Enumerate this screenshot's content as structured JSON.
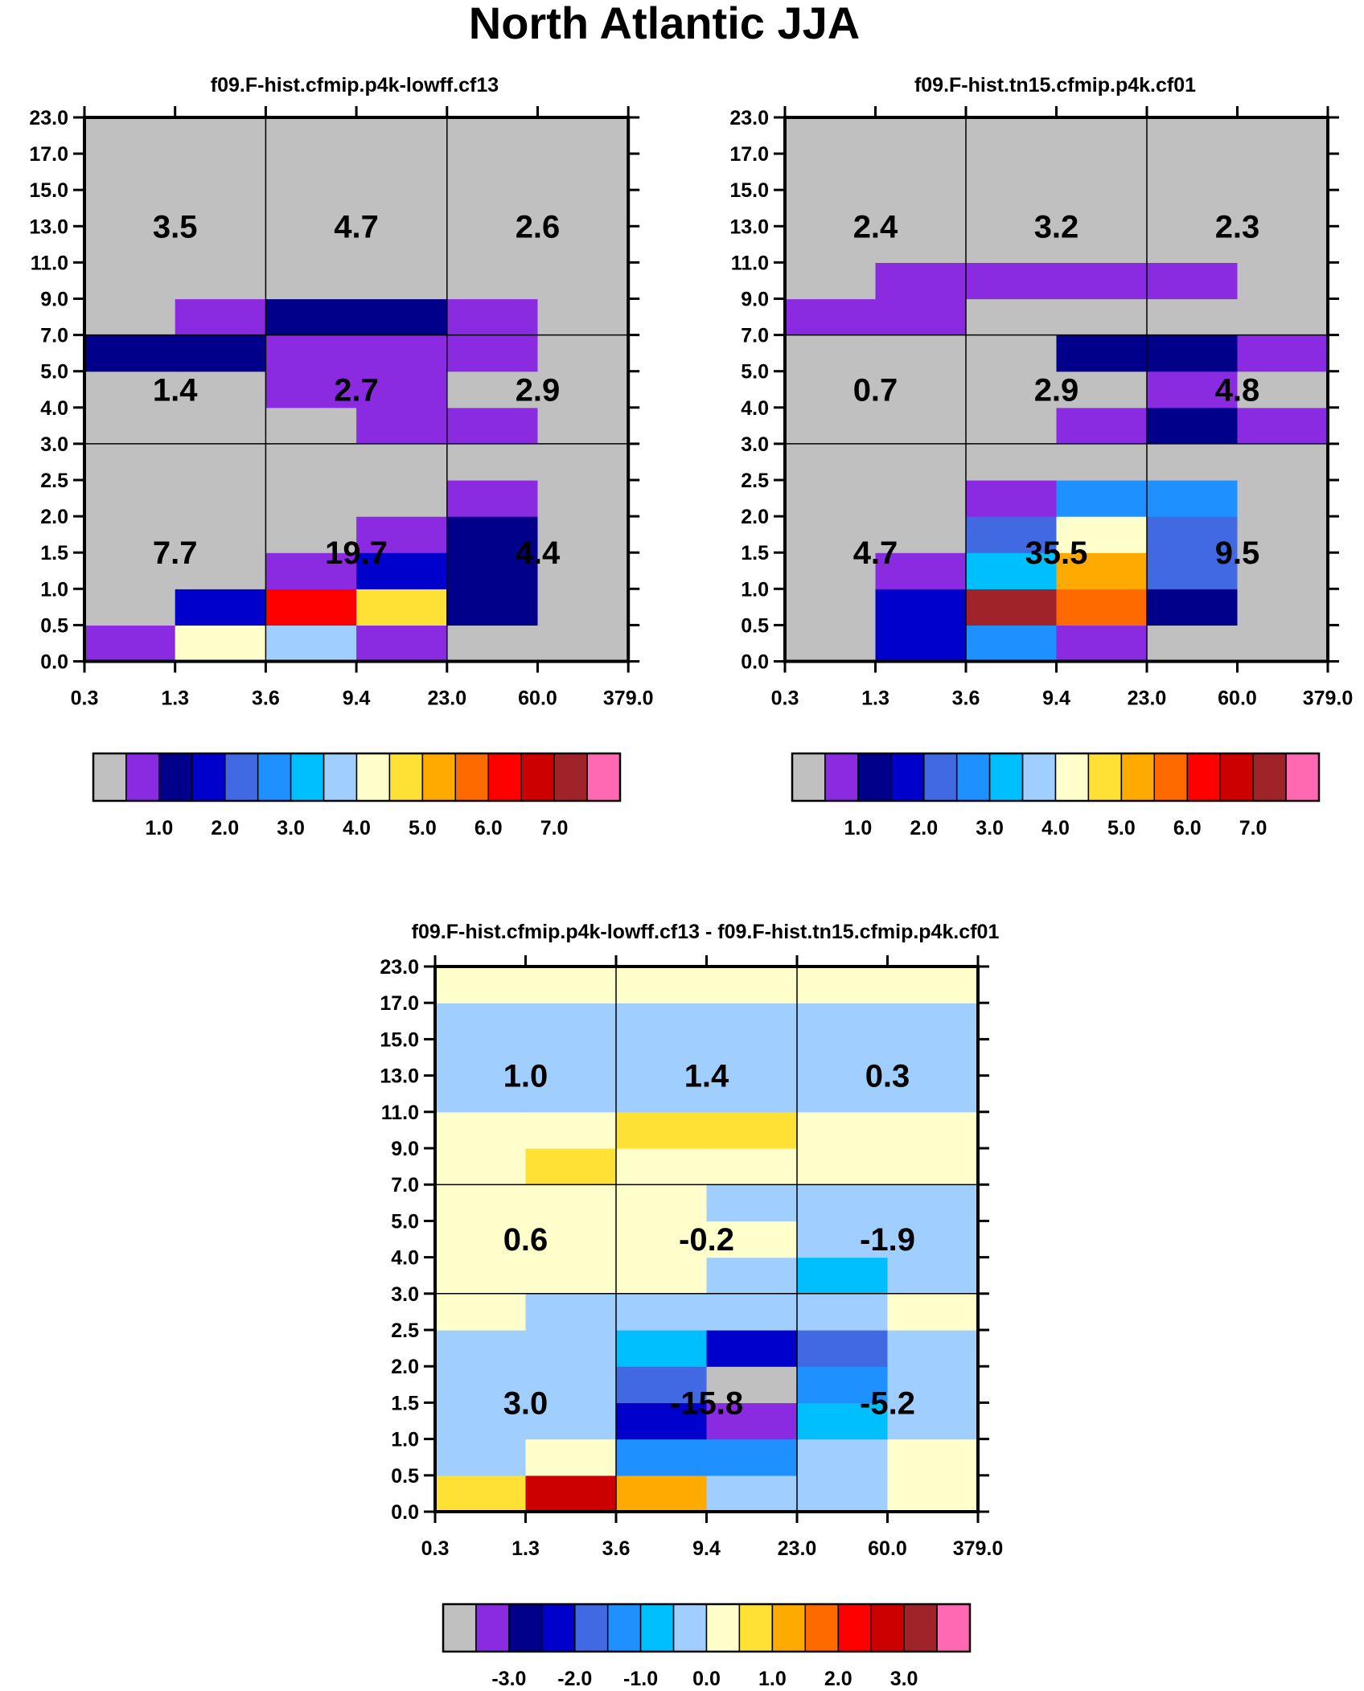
{
  "title": "North Atlantic JJA",
  "palette": [
    "#c0c0c0",
    "#8a2be2",
    "#00008b",
    "#0000cd",
    "#4169e1",
    "#1e90ff",
    "#00bfff",
    "#a0cfff",
    "#ffffcc",
    "#ffe135",
    "#ffaa00",
    "#ff6a00",
    "#ff0000",
    "#cc0000",
    "#a0232a",
    "#ff69b4"
  ],
  "chart_data": [
    {
      "type": "heatmap",
      "title": "f09.F-hist.cfmip.p4k-lowff.cf13",
      "x_ticks": [
        "0.3",
        "1.3",
        "3.6",
        "9.4",
        "23.0",
        "60.0",
        "379.0"
      ],
      "y_ticks": [
        "0.0",
        "0.5",
        "1.0",
        "1.5",
        "2.0",
        "2.5",
        "3.0",
        "4.0",
        "5.0",
        "7.0",
        "9.0",
        "11.0",
        "13.0",
        "15.0",
        "17.0",
        "23.0"
      ],
      "colorbar_ticks": [
        "1.0",
        "2.0",
        "3.0",
        "4.0",
        "5.0",
        "6.0",
        "7.0"
      ],
      "cells_color_index": [
        [
          1,
          8,
          7,
          1,
          0,
          0
        ],
        [
          0,
          3,
          12,
          9,
          2,
          0
        ],
        [
          0,
          0,
          1,
          3,
          2,
          0
        ],
        [
          0,
          0,
          0,
          1,
          2,
          0
        ],
        [
          0,
          0,
          0,
          0,
          1,
          0
        ],
        [
          0,
          0,
          0,
          0,
          0,
          0
        ],
        [
          0,
          0,
          0,
          1,
          1,
          0
        ],
        [
          0,
          0,
          1,
          1,
          0,
          0
        ],
        [
          2,
          2,
          1,
          1,
          1,
          0
        ],
        [
          0,
          1,
          2,
          2,
          1,
          0
        ],
        [
          0,
          0,
          0,
          0,
          0,
          0
        ],
        [
          0,
          0,
          0,
          0,
          0,
          0
        ],
        [
          0,
          0,
          0,
          0,
          0,
          0
        ],
        [
          0,
          0,
          0,
          0,
          0,
          0
        ],
        [
          0,
          0,
          0,
          0,
          0,
          0
        ]
      ],
      "summary": [
        [
          "7.7",
          "19.7",
          "4.4"
        ],
        [
          "1.4",
          "2.7",
          "2.9"
        ],
        [
          "3.5",
          "4.7",
          "2.6"
        ]
      ]
    },
    {
      "type": "heatmap",
      "title": "f09.F-hist.tn15.cfmip.p4k.cf01",
      "x_ticks": [
        "0.3",
        "1.3",
        "3.6",
        "9.4",
        "23.0",
        "60.0",
        "379.0"
      ],
      "y_ticks": [
        "0.0",
        "0.5",
        "1.0",
        "1.5",
        "2.0",
        "2.5",
        "3.0",
        "4.0",
        "5.0",
        "7.0",
        "9.0",
        "11.0",
        "13.0",
        "15.0",
        "17.0",
        "23.0"
      ],
      "colorbar_ticks": [
        "1.0",
        "2.0",
        "3.0",
        "4.0",
        "5.0",
        "6.0",
        "7.0"
      ],
      "cells_color_index": [
        [
          0,
          3,
          5,
          1,
          0,
          0
        ],
        [
          0,
          3,
          14,
          11,
          2,
          0
        ],
        [
          0,
          1,
          6,
          10,
          4,
          0
        ],
        [
          0,
          0,
          4,
          8,
          4,
          0
        ],
        [
          0,
          0,
          1,
          5,
          5,
          0
        ],
        [
          0,
          0,
          0,
          0,
          0,
          0
        ],
        [
          0,
          0,
          0,
          1,
          2,
          1
        ],
        [
          0,
          0,
          0,
          0,
          1,
          0
        ],
        [
          0,
          0,
          0,
          2,
          2,
          1
        ],
        [
          1,
          1,
          0,
          0,
          0,
          0
        ],
        [
          0,
          1,
          1,
          1,
          1,
          0
        ],
        [
          0,
          0,
          0,
          0,
          0,
          0
        ],
        [
          0,
          0,
          0,
          0,
          0,
          0
        ],
        [
          0,
          0,
          0,
          0,
          0,
          0
        ],
        [
          0,
          0,
          0,
          0,
          0,
          0
        ]
      ],
      "summary": [
        [
          "4.7",
          "35.5",
          "9.5"
        ],
        [
          "0.7",
          "2.9",
          "4.8"
        ],
        [
          "2.4",
          "3.2",
          "2.3"
        ]
      ]
    },
    {
      "type": "heatmap",
      "title": "f09.F-hist.cfmip.p4k-lowff.cf13 - f09.F-hist.tn15.cfmip.p4k.cf01",
      "x_ticks": [
        "0.3",
        "1.3",
        "3.6",
        "9.4",
        "23.0",
        "60.0",
        "379.0"
      ],
      "y_ticks": [
        "0.0",
        "0.5",
        "1.0",
        "1.5",
        "2.0",
        "2.5",
        "3.0",
        "4.0",
        "5.0",
        "7.0",
        "9.0",
        "11.0",
        "13.0",
        "15.0",
        "17.0",
        "23.0"
      ],
      "colorbar_ticks": [
        "-3.0",
        "-2.0",
        "-1.0",
        "0.0",
        "1.0",
        "2.0",
        "3.0"
      ],
      "cells_color_index": [
        [
          9,
          13,
          10,
          7,
          7,
          8
        ],
        [
          7,
          8,
          5,
          5,
          7,
          8
        ],
        [
          7,
          7,
          3,
          1,
          6,
          7
        ],
        [
          7,
          7,
          4,
          0,
          5,
          7
        ],
        [
          7,
          7,
          6,
          3,
          4,
          7
        ],
        [
          8,
          7,
          7,
          7,
          7,
          8
        ],
        [
          8,
          8,
          8,
          7,
          6,
          7
        ],
        [
          8,
          8,
          8,
          8,
          7,
          7
        ],
        [
          8,
          8,
          8,
          7,
          7,
          7
        ],
        [
          8,
          9,
          8,
          8,
          8,
          8
        ],
        [
          8,
          8,
          9,
          9,
          8,
          8
        ],
        [
          7,
          7,
          7,
          7,
          7,
          7
        ],
        [
          7,
          7,
          7,
          7,
          7,
          7
        ],
        [
          7,
          7,
          7,
          7,
          7,
          7
        ],
        [
          8,
          8,
          8,
          8,
          8,
          8
        ]
      ],
      "summary": [
        [
          "3.0",
          "-15.8",
          "-5.2"
        ],
        [
          "0.6",
          "-0.2",
          "-1.9"
        ],
        [
          "1.0",
          "1.4",
          "0.3"
        ]
      ]
    }
  ]
}
